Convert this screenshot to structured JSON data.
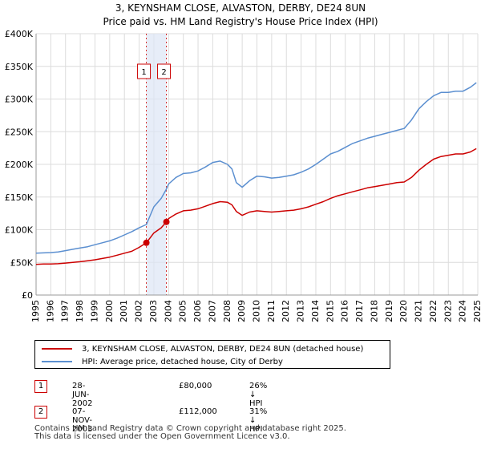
{
  "header": {
    "title_line1": "3, KEYNSHAM CLOSE, ALVASTON, DERBY, DE24 8UN",
    "title_line2": "Price paid vs. HM Land Registry's House Price Index (HPI)"
  },
  "colors": {
    "property": "#cc0000",
    "hpi": "#5b8fd0",
    "shade": "#dde6f5",
    "grid": "#dcdcdc"
  },
  "legend": {
    "property_label": "3, KEYNSHAM CLOSE, ALVASTON, DERBY, DE24 8UN (detached house)",
    "hpi_label": "HPI: Average price, detached house, City of Derby"
  },
  "transactions": [
    {
      "num": "1",
      "date": "28-JUN-2002",
      "price": "£80,000",
      "hpi_diff": "26% ↓ HPI"
    },
    {
      "num": "2",
      "date": "07-NOV-2003",
      "price": "£112,000",
      "hpi_diff": "31% ↓ HPI"
    }
  ],
  "footer": {
    "line1": "Contains HM Land Registry data © Crown copyright and database right 2025.",
    "line2": "This data is licensed under the Open Government Licence v3.0."
  },
  "chart_data": {
    "type": "line",
    "title": "3, KEYNSHAM CLOSE, ALVASTON, DERBY, DE24 8UN",
    "subtitle": "Price paid vs. HM Land Registry's House Price Index (HPI)",
    "xlabel": "",
    "ylabel": "",
    "xlim": [
      1995,
      2025
    ],
    "ylim": [
      0,
      400000
    ],
    "y_ticks": [
      0,
      50000,
      100000,
      150000,
      200000,
      250000,
      300000,
      350000,
      400000
    ],
    "y_tick_labels": [
      "£0",
      "£50K",
      "£100K",
      "£150K",
      "£200K",
      "£250K",
      "£300K",
      "£350K",
      "£400K"
    ],
    "x_ticks": [
      1995,
      1996,
      1997,
      1998,
      1999,
      2000,
      2001,
      2002,
      2003,
      2004,
      2005,
      2006,
      2007,
      2008,
      2009,
      2010,
      2011,
      2012,
      2013,
      2014,
      2015,
      2016,
      2017,
      2018,
      2019,
      2020,
      2021,
      2022,
      2023,
      2024,
      2025
    ],
    "grid": true,
    "shaded_region": [
      2002.49,
      2003.85
    ],
    "markers": [
      {
        "label": "1",
        "x": 2002.49,
        "y": 80000
      },
      {
        "label": "2",
        "x": 2003.85,
        "y": 112000
      }
    ],
    "series": [
      {
        "name": "3, KEYNSHAM CLOSE, ALVASTON, DERBY, DE24 8UN (detached house)",
        "color": "#cc0000",
        "x": [
          1995,
          1995.5,
          1996,
          1996.5,
          1997,
          1997.5,
          1998,
          1998.5,
          1999,
          1999.5,
          2000,
          2000.5,
          2001,
          2001.5,
          2002,
          2002.49,
          2003,
          2003.5,
          2003.85,
          2004,
          2004.5,
          2005,
          2005.5,
          2006,
          2006.5,
          2007,
          2007.5,
          2008,
          2008.3,
          2008.6,
          2009,
          2009.5,
          2010,
          2010.5,
          2011,
          2011.5,
          2012,
          2012.5,
          2013,
          2013.5,
          2014,
          2014.5,
          2015,
          2015.5,
          2016,
          2016.5,
          2017,
          2017.5,
          2018,
          2018.5,
          2019,
          2019.5,
          2020,
          2020.5,
          2021,
          2021.5,
          2022,
          2022.5,
          2023,
          2023.5,
          2024,
          2024.5,
          2024.9
        ],
        "y": [
          47000,
          47500,
          47500,
          48000,
          49000,
          50000,
          51000,
          52500,
          54000,
          56000,
          58000,
          61000,
          64000,
          67000,
          73000,
          80000,
          95000,
          103000,
          112000,
          117000,
          124000,
          129000,
          130000,
          132000,
          136000,
          140000,
          143000,
          142000,
          138000,
          128000,
          122000,
          127000,
          129000,
          128000,
          127000,
          128000,
          129000,
          130000,
          132000,
          135000,
          139000,
          143000,
          148000,
          152000,
          155000,
          158000,
          161000,
          164000,
          166000,
          168000,
          170000,
          172000,
          173000,
          180000,
          191000,
          200000,
          208000,
          212000,
          214000,
          216000,
          216000,
          219000,
          224000
        ]
      },
      {
        "name": "HPI: Average price, detached house, City of Derby",
        "color": "#5b8fd0",
        "x": [
          1995,
          1995.5,
          1996,
          1996.5,
          1997,
          1997.5,
          1998,
          1998.5,
          1999,
          1999.5,
          2000,
          2000.5,
          2001,
          2001.5,
          2002,
          2002.49,
          2003,
          2003.5,
          2003.85,
          2004,
          2004.5,
          2005,
          2005.5,
          2006,
          2006.5,
          2007,
          2007.5,
          2008,
          2008.3,
          2008.6,
          2009,
          2009.5,
          2010,
          2010.5,
          2011,
          2011.5,
          2012,
          2012.5,
          2013,
          2013.5,
          2014,
          2014.5,
          2015,
          2015.5,
          2016,
          2016.5,
          2017,
          2017.5,
          2018,
          2018.5,
          2019,
          2019.5,
          2020,
          2020.5,
          2021,
          2021.5,
          2022,
          2022.5,
          2023,
          2023.5,
          2024,
          2024.5,
          2024.9
        ],
        "y": [
          64000,
          64500,
          65000,
          66000,
          68000,
          70000,
          72000,
          74000,
          77000,
          80000,
          83000,
          87000,
          92000,
          97000,
          103000,
          108000,
          135000,
          148000,
          162000,
          170000,
          180000,
          186000,
          187000,
          190000,
          196000,
          203000,
          205000,
          200000,
          193000,
          172000,
          165000,
          175000,
          182000,
          181000,
          179000,
          180000,
          182000,
          184000,
          188000,
          193000,
          200000,
          208000,
          216000,
          220000,
          226000,
          232000,
          236000,
          240000,
          243000,
          246000,
          249000,
          252000,
          255000,
          268000,
          285000,
          296000,
          305000,
          310000,
          310000,
          312000,
          312000,
          318000,
          325000
        ]
      }
    ]
  }
}
